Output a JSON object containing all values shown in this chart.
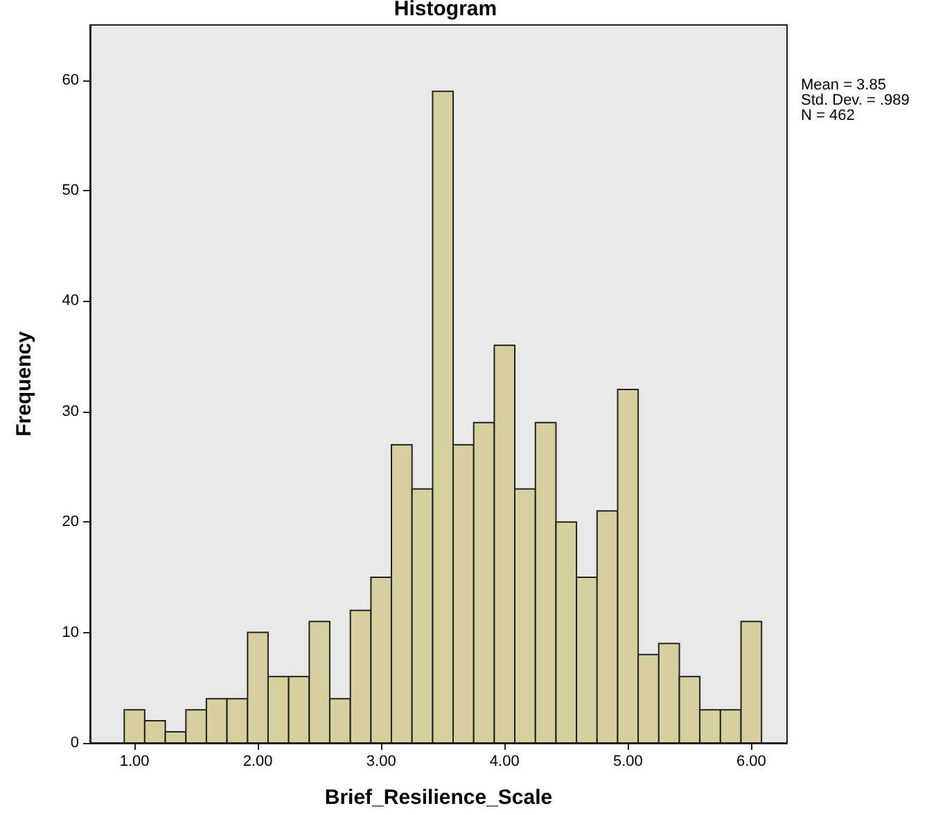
{
  "chart_data": {
    "type": "histogram",
    "title": "Histogram",
    "xlabel": "Brief_Resilience_Scale",
    "ylabel": "Frequency",
    "bins": [
      0.917,
      1.083,
      1.25,
      1.417,
      1.583,
      1.75,
      1.917,
      2.083,
      2.25,
      2.417,
      2.583,
      2.75,
      2.917,
      3.083,
      3.25,
      3.417,
      3.583,
      3.75,
      3.917,
      4.083,
      4.25,
      4.417,
      4.583,
      4.75,
      4.917,
      5.083,
      5.25,
      5.417,
      5.583,
      5.75,
      5.917,
      6.083
    ],
    "values": [
      3,
      2,
      1,
      3,
      4,
      4,
      10,
      6,
      6,
      11,
      4,
      12,
      15,
      27,
      23,
      59,
      27,
      29,
      36,
      23,
      29,
      20,
      15,
      21,
      32,
      8,
      9,
      6,
      3,
      3,
      11
    ],
    "color": "#d5d09e",
    "xlim": [
      0.64,
      6.29
    ],
    "xticks": [
      {
        "value": 1,
        "label": "1.00"
      },
      {
        "value": 2,
        "label": "2.00"
      },
      {
        "value": 3,
        "label": "3.00"
      },
      {
        "value": 4,
        "label": "4.00"
      },
      {
        "value": 5,
        "label": "5.00"
      },
      {
        "value": 6,
        "label": "6.00"
      }
    ],
    "ylim": [
      0,
      65
    ],
    "yticks": [
      0,
      10,
      20,
      30,
      40,
      50,
      60
    ],
    "grid": false,
    "annotations": [
      "Mean = 3.85",
      "Std. Dev. = .989",
      "N = 462"
    ]
  }
}
